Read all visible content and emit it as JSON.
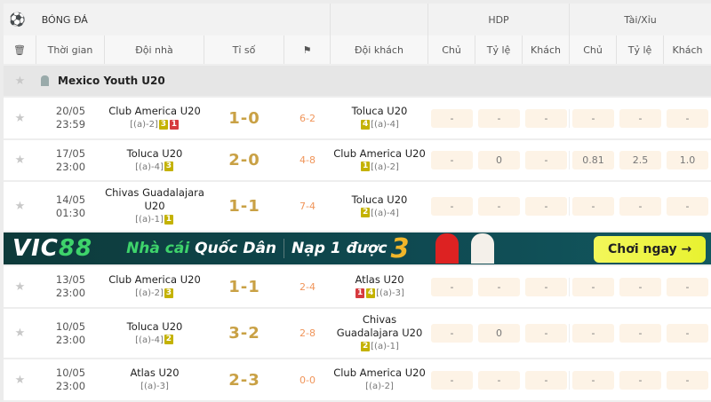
{
  "header": {
    "sport": "BÓNG ĐÁ",
    "hdp": "HDP",
    "taixiu": "Tài/Xỉu"
  },
  "columns": {
    "time": "Thời gian",
    "home": "Đội nhà",
    "score": "Tỉ số",
    "away": "Đội khách",
    "odds": [
      "Chủ",
      "Tỷ lệ",
      "Khách",
      "Chủ",
      "Tỷ lệ",
      "Khách"
    ]
  },
  "league": "Mexico Youth U20",
  "matches": [
    {
      "date": "20/05",
      "time": "23:59",
      "home": "Club America U20",
      "home_sub": "[(a)-2]",
      "home_badges": [
        [
          "3",
          "y"
        ],
        [
          "1",
          "r"
        ]
      ],
      "score": "1-0",
      "corners": "6-2",
      "away": "Toluca U20",
      "away_sub": "[(a)-4]",
      "away_badges": [
        [
          "4",
          "y"
        ]
      ],
      "odds": [
        "-",
        "-",
        "-",
        "-",
        "-",
        "-"
      ]
    },
    {
      "date": "17/05",
      "time": "23:00",
      "home": "Toluca U20",
      "home_sub": "[(a)-4]",
      "home_badges": [
        [
          "3",
          "y"
        ]
      ],
      "score": "2-0",
      "corners": "4-8",
      "away": "Club America U20",
      "away_sub": "[(a)-2]",
      "away_badges": [
        [
          "1",
          "y"
        ]
      ],
      "odds": [
        "-",
        "0",
        "-",
        "0.81",
        "2.5",
        "1.0"
      ]
    },
    {
      "date": "14/05",
      "time": "01:30",
      "home": "Chivas Guadalajara U20",
      "home_sub": "[(a)-1]",
      "home_badges": [
        [
          "1",
          "y"
        ]
      ],
      "score": "1-1",
      "corners": "7-4",
      "away": "Toluca U20",
      "away_sub": "[(a)-4]",
      "away_badges": [
        [
          "2",
          "y"
        ]
      ],
      "odds": [
        "-",
        "-",
        "-",
        "-",
        "-",
        "-"
      ]
    },
    {
      "date": "13/05",
      "time": "23:00",
      "home": "Club America U20",
      "home_sub": "[(a)-2]",
      "home_badges": [
        [
          "3",
          "y"
        ]
      ],
      "score": "1-1",
      "corners": "2-4",
      "away": "Atlas U20",
      "away_sub": "[(a)-3]",
      "away_badges": [
        [
          "1",
          "r"
        ],
        [
          "4",
          "y"
        ]
      ],
      "odds": [
        "-",
        "-",
        "-",
        "-",
        "-",
        "-"
      ]
    },
    {
      "date": "10/05",
      "time": "23:00",
      "home": "Toluca U20",
      "home_sub": "[(a)-4]",
      "home_badges": [
        [
          "2",
          "y"
        ]
      ],
      "score": "3-2",
      "corners": "2-8",
      "away": "Chivas Guadalajara U20",
      "away_sub": "[(a)-1]",
      "away_badges": [
        [
          "2",
          "y"
        ]
      ],
      "odds": [
        "-",
        "0",
        "-",
        "-",
        "-",
        "-"
      ]
    },
    {
      "date": "10/05",
      "time": "23:00",
      "home": "Atlas U20",
      "home_sub": "[(a)-3]",
      "home_badges": [],
      "score": "2-3",
      "corners": "0-0",
      "away": "Club America U20",
      "away_sub": "[(a)-2]",
      "away_badges": [],
      "odds": [
        "-",
        "-",
        "-",
        "-",
        "-",
        "-"
      ]
    }
  ],
  "banner": {
    "brand_a": "VIC",
    "brand_b": "88",
    "tag_a": "Nhà cái",
    "tag_b": "Quốc Dân",
    "tag2": "Nạp 1 được",
    "tag2_num": "3",
    "cta": "Chơi ngay →"
  },
  "colors": {
    "score": "#c9a145",
    "corner": "#f0955a",
    "badge_yellow": "#c4b200",
    "badge_red": "#d63a3f",
    "odds_bg": "#fdf3e6"
  }
}
